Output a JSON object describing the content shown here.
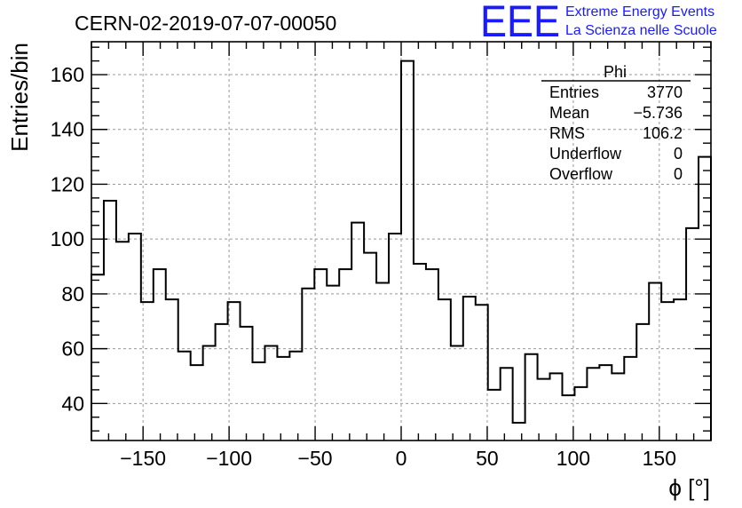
{
  "header": {
    "run_title": "CERN-02-2019-07-07-00050",
    "logo_text": "EEE",
    "logo_line1": "Extreme Energy Events",
    "logo_line2": "La Scienza nelle Scuole"
  },
  "colors": {
    "logo": "#1a1aff",
    "line": "#000000",
    "grid": "#999999"
  },
  "stats": {
    "name": "Phi",
    "rows": [
      {
        "label": "Entries",
        "value": "3770"
      },
      {
        "label": "Mean",
        "value": "−5.736"
      },
      {
        "label": "RMS",
        "value": "106.2"
      },
      {
        "label": "Underflow",
        "value": "0"
      },
      {
        "label": "Overflow",
        "value": "0"
      }
    ]
  },
  "chart_data": {
    "type": "histogram",
    "title": "CERN-02-2019-07-07-00050",
    "xlabel": "ϕ [°]",
    "ylabel": "Entries/bin",
    "xlim": [
      -180,
      180
    ],
    "ylim": [
      26.5,
      172
    ],
    "bin_width": 7.2,
    "grid": true,
    "x_ticks": [
      -150,
      -100,
      -50,
      0,
      50,
      100,
      150
    ],
    "x_tick_labels": [
      "−150",
      "−100",
      "−50",
      "0",
      "50",
      "100",
      "150"
    ],
    "y_ticks": [
      40,
      60,
      80,
      100,
      120,
      140,
      160
    ],
    "y_tick_labels": [
      "40",
      "60",
      "80",
      "100",
      "120",
      "140",
      "160"
    ],
    "bin_edges_start": -180,
    "values": [
      87,
      114,
      99,
      102,
      77,
      89,
      78,
      59,
      54,
      61,
      69,
      77,
      68,
      55,
      61,
      57,
      59,
      82,
      89,
      83,
      89,
      106,
      95,
      84,
      102,
      165,
      91,
      89,
      78,
      61,
      79,
      76,
      45,
      53,
      33,
      58,
      49,
      51,
      43,
      46,
      53,
      54,
      51,
      57,
      69,
      84,
      77,
      78,
      104,
      130
    ]
  }
}
